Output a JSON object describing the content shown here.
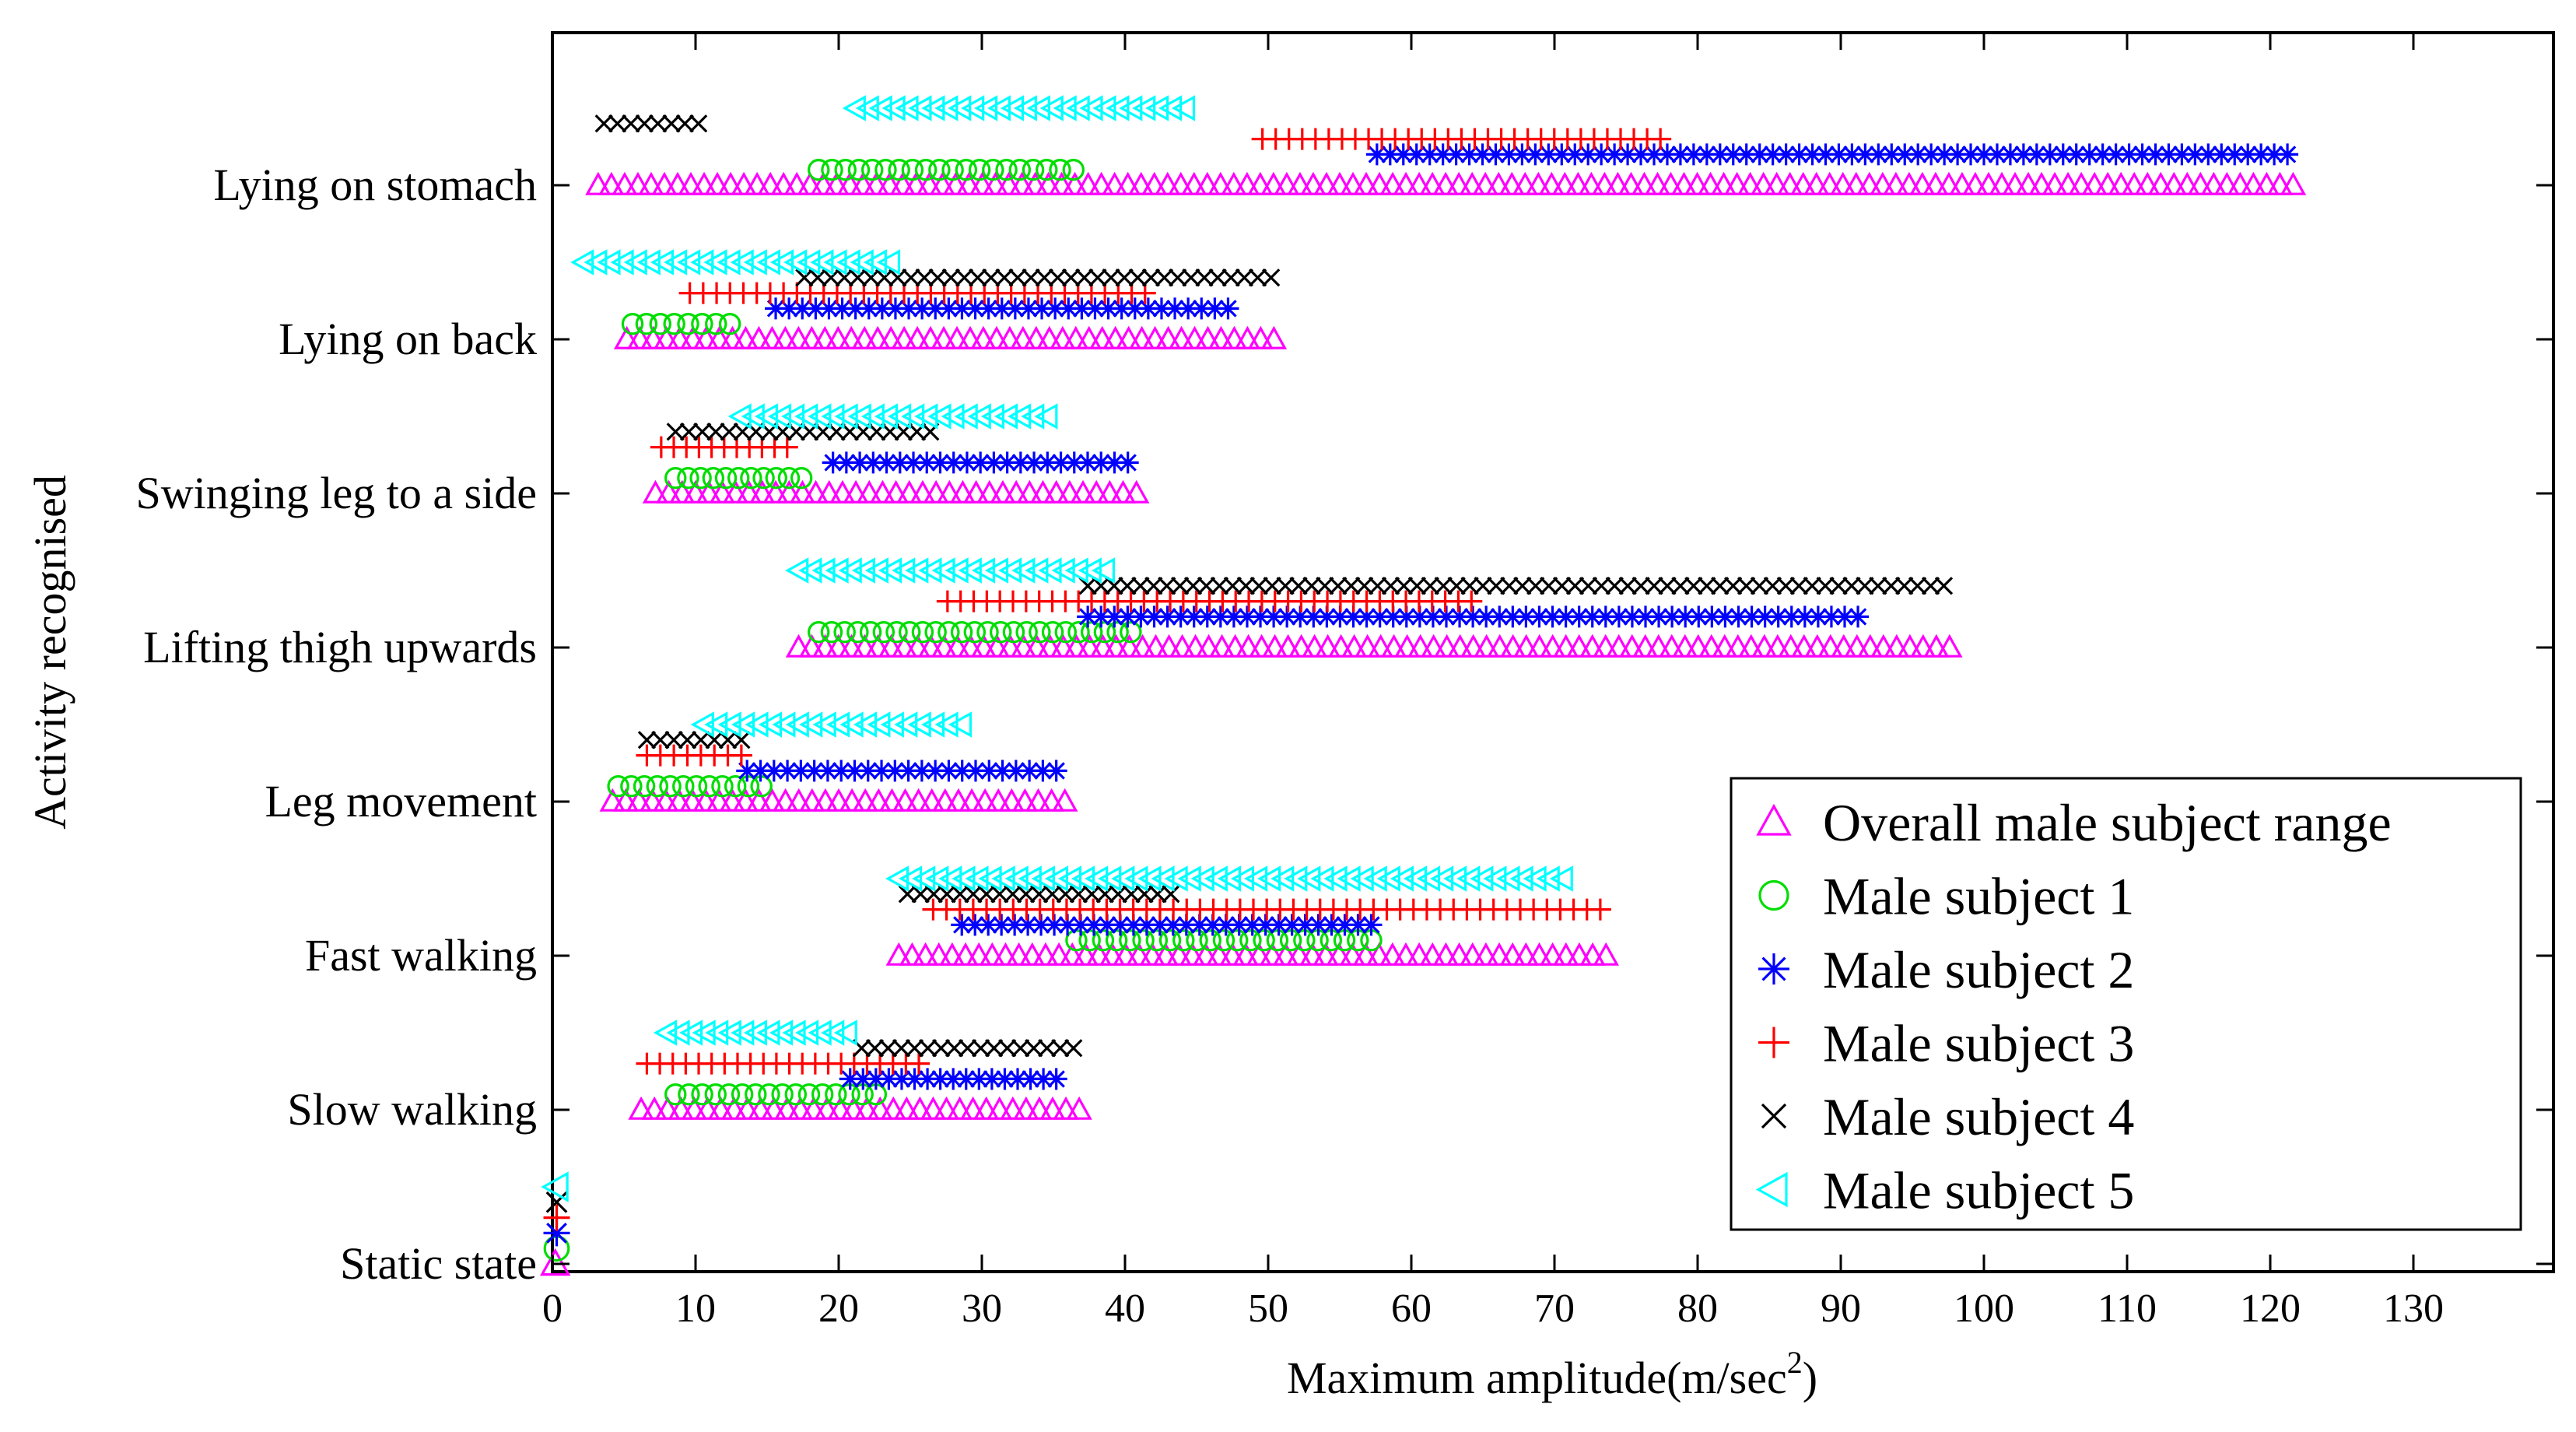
{
  "chart_data": {
    "type": "scatter",
    "title": "",
    "xlabel": "Maximum amplitude(m/sec",
    "xlabel_superscript": "2",
    "xlabel_suffix": ")",
    "ylabel": "Activity recognised",
    "xlim": [
      0,
      140
    ],
    "xticks": [
      0,
      10,
      20,
      30,
      40,
      50,
      60,
      70,
      80,
      90,
      100,
      110,
      120,
      130
    ],
    "xtick_labels": [
      "0",
      "10",
      "20",
      "30",
      "40",
      "50",
      "60",
      "70",
      "80",
      "90",
      "100",
      "110",
      "120",
      "130"
    ],
    "categories": [
      "Static state",
      "Slow walking",
      "Fast walking",
      "Leg movement",
      "Lifting thigh upwards",
      "Swinging leg to a side",
      "Lying on back",
      "Lying on stomach"
    ],
    "legend_position": "bottom-right",
    "series": [
      {
        "name": "Overall male subject range",
        "marker": "triangle-up",
        "color": "#ff00ff",
        "offset": 0.0,
        "ranges": [
          [
            0.2,
            0.8
          ],
          [
            6.2,
            36.8
          ],
          [
            24.2,
            73.6
          ],
          [
            4.2,
            35.8
          ],
          [
            17.2,
            97.6
          ],
          [
            7.2,
            40.8
          ],
          [
            5.2,
            50.4
          ],
          [
            3.2,
            121.6
          ]
        ]
      },
      {
        "name": "Male subject 1",
        "marker": "circle",
        "color": "#00dd00",
        "offset": 0.1,
        "ranges": [
          [
            0.3,
            0.7
          ],
          [
            8.6,
            22.6
          ],
          [
            36.6,
            57.2
          ],
          [
            4.6,
            14.6
          ],
          [
            18.6,
            40.4
          ],
          [
            8.6,
            17.4
          ],
          [
            5.6,
            12.4
          ],
          [
            18.6,
            36.4
          ]
        ]
      },
      {
        "name": "Male subject 2",
        "marker": "asterisk",
        "color": "#0000ff",
        "offset": 0.2,
        "ranges": [
          [
            0.3,
            0.7
          ],
          [
            20.8,
            35.2
          ],
          [
            28.6,
            57.2
          ],
          [
            13.6,
            35.2
          ],
          [
            37.4,
            91.2
          ],
          [
            19.6,
            40.2
          ],
          [
            15.6,
            47.2
          ],
          [
            57.6,
            121.2
          ]
        ]
      },
      {
        "name": "Male subject 3",
        "marker": "plus",
        "color": "#ff0000",
        "offset": 0.3,
        "ranges": [
          [
            0.3,
            0.7
          ],
          [
            6.6,
            25.6
          ],
          [
            26.6,
            73.2
          ],
          [
            6.6,
            13.2
          ],
          [
            27.6,
            64.2
          ],
          [
            7.6,
            16.4
          ],
          [
            9.6,
            41.4
          ],
          [
            49.6,
            77.4
          ]
        ]
      },
      {
        "name": "Male subject 4",
        "marker": "x",
        "color": "#000000",
        "offset": 0.4,
        "ranges": [
          [
            0.3,
            0.7
          ],
          [
            21.6,
            36.4
          ],
          [
            24.8,
            43.2
          ],
          [
            6.6,
            13.2
          ],
          [
            37.4,
            97.2
          ],
          [
            8.6,
            26.4
          ],
          [
            17.6,
            50.2
          ],
          [
            3.6,
            10.2
          ]
        ]
      },
      {
        "name": "Male subject 5",
        "marker": "triangle-left",
        "color": "#00ffff",
        "offset": 0.5,
        "ranges": [
          [
            0.3,
            0.7
          ],
          [
            8.0,
            20.6
          ],
          [
            24.2,
            70.6
          ],
          [
            10.6,
            28.6
          ],
          [
            17.2,
            38.6
          ],
          [
            13.2,
            34.6
          ],
          [
            2.2,
            23.6
          ],
          [
            21.2,
            44.2
          ]
        ]
      }
    ]
  }
}
